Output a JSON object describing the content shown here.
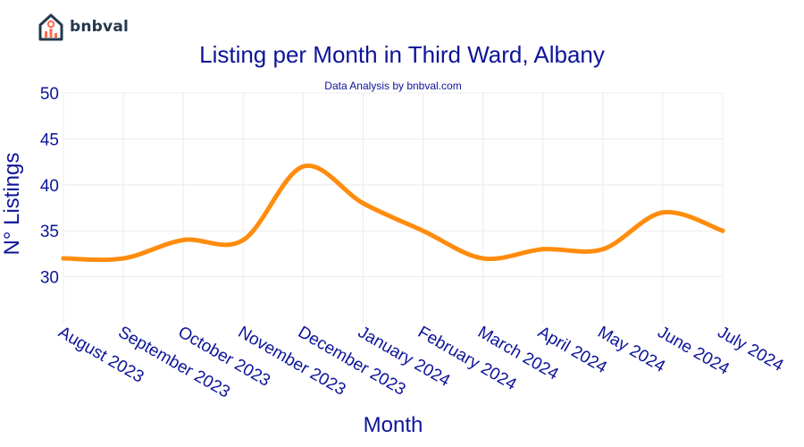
{
  "brand": {
    "name": "bnbval"
  },
  "chart_data": {
    "type": "line",
    "title": "Listing per Month in Third Ward, Albany",
    "subtitle": "Data Analysis by bnbval.com",
    "xlabel": "Month",
    "ylabel": "N° Listings",
    "categories": [
      "August 2023",
      "September 2023",
      "October 2023",
      "November 2023",
      "December 2023",
      "January 2024",
      "February 2024",
      "March 2024",
      "April 2024",
      "May 2024",
      "June 2024",
      "July 2024"
    ],
    "series": [
      {
        "values": [
          32,
          32,
          34,
          34,
          42,
          38,
          35,
          32,
          33,
          33,
          37,
          35
        ]
      }
    ],
    "ylim": [
      25,
      50
    ],
    "yticks": [
      30,
      35,
      40,
      45,
      50
    ],
    "grid": true,
    "colors": {
      "line": "#ff8c0d",
      "text": "#0d1499",
      "grid": "#ececec"
    }
  }
}
